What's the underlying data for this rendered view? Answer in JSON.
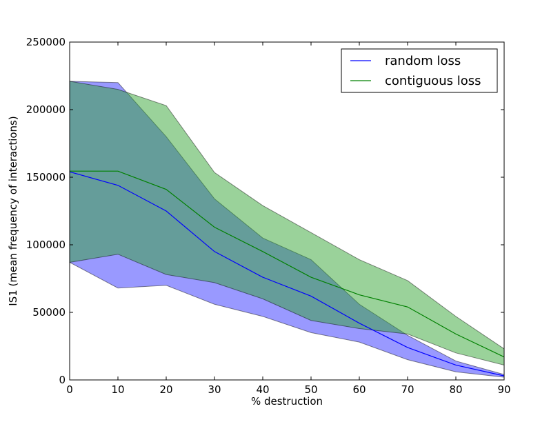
{
  "chart_data": {
    "type": "line",
    "title": "",
    "xlabel": "% destruction",
    "ylabel": "IS1 (mean frequency of interactions)",
    "xlim": [
      0,
      90
    ],
    "ylim": [
      0,
      250000
    ],
    "x": [
      0,
      10,
      20,
      30,
      40,
      50,
      60,
      70,
      80,
      90
    ],
    "x_ticks": [
      0,
      10,
      20,
      30,
      40,
      50,
      60,
      70,
      80,
      90
    ],
    "y_ticks": [
      0,
      50000,
      100000,
      150000,
      200000,
      250000
    ],
    "x_tick_labels": [
      "0",
      "10",
      "20",
      "30",
      "40",
      "50",
      "60",
      "70",
      "80",
      "90"
    ],
    "y_tick_labels": [
      "0",
      "50000",
      "100000",
      "150000",
      "200000",
      "250000"
    ],
    "grid": false,
    "legend_position": "top-right",
    "series": [
      {
        "name": "random loss",
        "color": "#0000ff",
        "band_color": "#0000ff",
        "values": [
          154000,
          144000,
          125000,
          95000,
          76000,
          62000,
          42000,
          24000,
          11000,
          3000
        ],
        "upper": [
          221000,
          220000,
          180000,
          134000,
          105000,
          89000,
          56000,
          33000,
          14000,
          4000
        ],
        "lower": [
          87000,
          68000,
          70000,
          56000,
          47000,
          35000,
          28000,
          15000,
          6000,
          2000
        ]
      },
      {
        "name": "contiguous loss",
        "color": "#008000",
        "band_color": "#2ca02c",
        "values": [
          154500,
          154500,
          141000,
          113000,
          95000,
          76000,
          63000,
          54000,
          34000,
          17000
        ],
        "upper": [
          221000,
          215000,
          203000,
          153500,
          129000,
          109000,
          89000,
          73500,
          47000,
          23000
        ],
        "lower": [
          87000,
          93000,
          78000,
          72000,
          60000,
          44000,
          38000,
          34000,
          20000,
          11000
        ]
      }
    ]
  }
}
